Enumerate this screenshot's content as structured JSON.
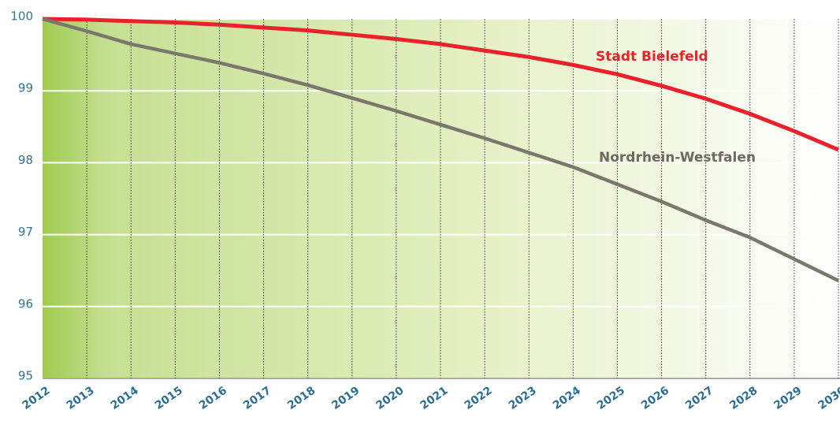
{
  "chart_data": {
    "type": "line",
    "x": [
      2012,
      2013,
      2014,
      2015,
      2016,
      2017,
      2018,
      2019,
      2020,
      2021,
      2022,
      2023,
      2024,
      2025,
      2026,
      2027,
      2028,
      2029,
      2030
    ],
    "series": [
      {
        "name": "Stadt Bielefeld",
        "color": "#e8212b",
        "values": [
          100,
          99.99,
          99.97,
          99.95,
          99.92,
          99.88,
          99.84,
          99.78,
          99.72,
          99.65,
          99.56,
          99.47,
          99.36,
          99.23,
          99.07,
          98.89,
          98.68,
          98.44,
          98.18
        ]
      },
      {
        "name": "Nordrhein-Westfalen",
        "color": "#7b776c",
        "values": [
          100,
          99.83,
          99.65,
          99.52,
          99.39,
          99.24,
          99.08,
          98.9,
          98.72,
          98.53,
          98.34,
          98.14,
          97.94,
          97.7,
          97.46,
          97.2,
          96.96,
          96.66,
          96.36
        ]
      }
    ],
    "xlim": [
      2012,
      2030
    ],
    "xticks": [
      2012,
      2013,
      2014,
      2015,
      2016,
      2017,
      2018,
      2019,
      2020,
      2021,
      2022,
      2023,
      2024,
      2025,
      2026,
      2027,
      2028,
      2029,
      2030
    ],
    "ylim": [
      95,
      100
    ],
    "yticks": [
      95,
      96,
      97,
      98,
      99,
      100
    ],
    "grid": true
  }
}
